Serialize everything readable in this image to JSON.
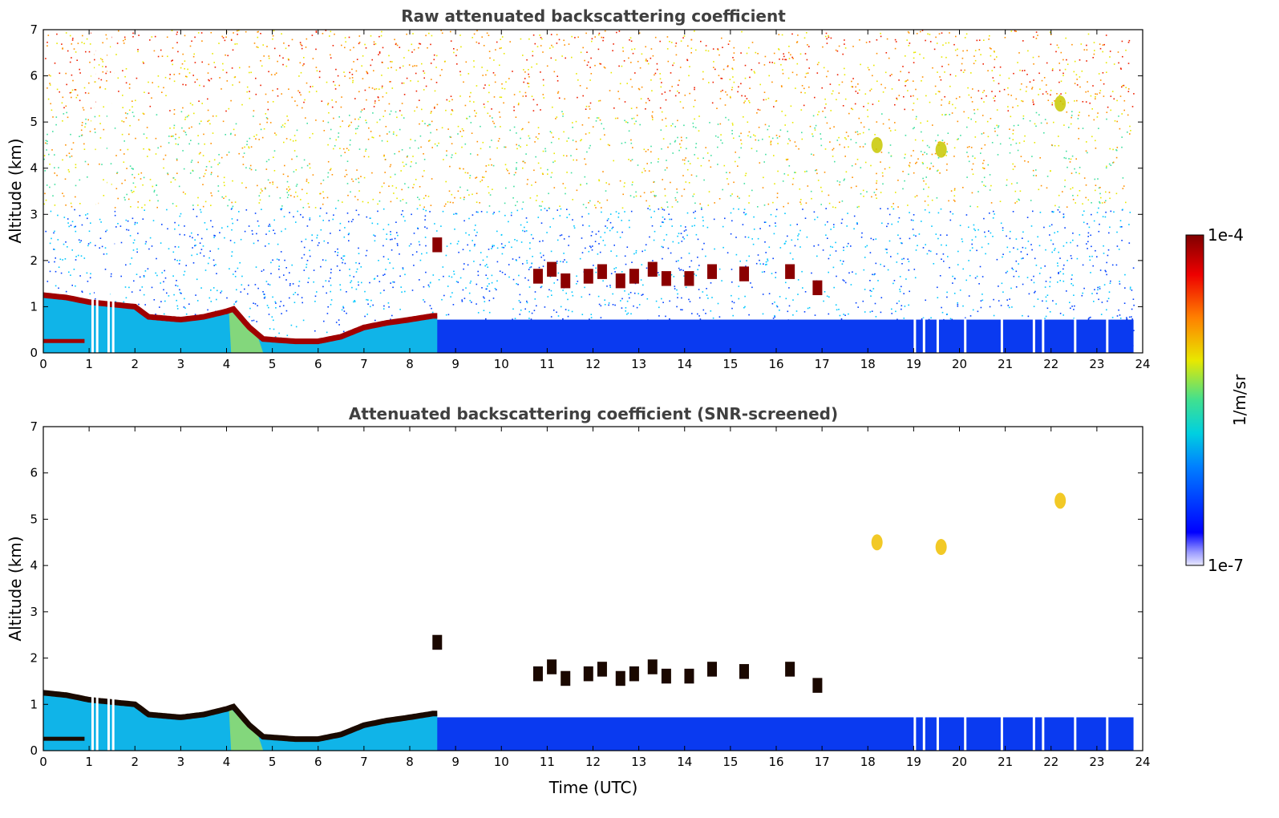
{
  "chart_data": [
    {
      "type": "heatmap",
      "title": "Raw attenuated backscattering coefficient",
      "xlabel": "",
      "ylabel": "Altitude (km)",
      "xlim": [
        0,
        24
      ],
      "ylim": [
        0,
        7
      ],
      "xticks": [
        "0",
        "1",
        "2",
        "3",
        "4",
        "5",
        "6",
        "7",
        "8",
        "9",
        "10",
        "11",
        "12",
        "13",
        "14",
        "15",
        "16",
        "17",
        "18",
        "19",
        "20",
        "21",
        "22",
        "23",
        "24"
      ],
      "yticks": [
        "0",
        "1",
        "2",
        "3",
        "4",
        "5",
        "6",
        "7"
      ],
      "mode": "raw"
    },
    {
      "type": "heatmap",
      "title": "Attenuated backscattering coefficient (SNR-screened)",
      "xlabel": "Time (UTC)",
      "ylabel": "Altitude (km)",
      "xlim": [
        0,
        24
      ],
      "ylim": [
        0,
        7
      ],
      "xticks": [
        "0",
        "1",
        "2",
        "3",
        "4",
        "5",
        "6",
        "7",
        "8",
        "9",
        "10",
        "11",
        "12",
        "13",
        "14",
        "15",
        "16",
        "17",
        "18",
        "19",
        "20",
        "21",
        "22",
        "23",
        "24"
      ],
      "yticks": [
        "0",
        "1",
        "2",
        "3",
        "4",
        "5",
        "6",
        "7"
      ],
      "mode": "screened"
    }
  ],
  "colorbar": {
    "label": "1/m/sr",
    "max_label": "1e-4",
    "min_label": "1e-7",
    "scale": "log",
    "range": [
      1e-07,
      0.0001
    ]
  },
  "features": {
    "boundary_layer_top_km": [
      [
        0.0,
        1.25
      ],
      [
        0.5,
        1.2
      ],
      [
        1.0,
        1.1
      ],
      [
        1.5,
        1.05
      ],
      [
        2.0,
        1.0
      ],
      [
        2.3,
        0.78
      ],
      [
        3.0,
        0.72
      ],
      [
        3.5,
        0.78
      ],
      [
        4.0,
        0.9
      ],
      [
        4.15,
        0.95
      ],
      [
        4.5,
        0.55
      ],
      [
        4.8,
        0.3
      ],
      [
        5.5,
        0.25
      ],
      [
        6.0,
        0.25
      ],
      [
        6.5,
        0.35
      ],
      [
        7.0,
        0.55
      ],
      [
        7.5,
        0.65
      ],
      [
        8.0,
        0.72
      ],
      [
        8.5,
        0.8
      ]
    ],
    "surface_layer_top_km": [
      [
        0,
        0.3
      ],
      [
        0.9,
        0.3
      ]
    ],
    "cloud_blobs": [
      {
        "t": 8.6,
        "h": 2.28
      },
      {
        "t": 10.8,
        "h": 1.6
      },
      {
        "t": 11.1,
        "h": 1.75
      },
      {
        "t": 11.4,
        "h": 1.5
      },
      {
        "t": 11.9,
        "h": 1.6
      },
      {
        "t": 12.2,
        "h": 1.7
      },
      {
        "t": 12.6,
        "h": 1.5
      },
      {
        "t": 12.9,
        "h": 1.6
      },
      {
        "t": 13.3,
        "h": 1.75
      },
      {
        "t": 13.6,
        "h": 1.55
      },
      {
        "t": 14.1,
        "h": 1.55
      },
      {
        "t": 14.6,
        "h": 1.7
      },
      {
        "t": 15.3,
        "h": 1.65
      },
      {
        "t": 16.3,
        "h": 1.7
      },
      {
        "t": 16.9,
        "h": 1.35
      }
    ],
    "elevated_aerosol": [
      {
        "t": 18.2,
        "h": 4.5
      },
      {
        "t": 19.6,
        "h": 4.4
      },
      {
        "t": 22.2,
        "h": 5.4
      }
    ]
  }
}
